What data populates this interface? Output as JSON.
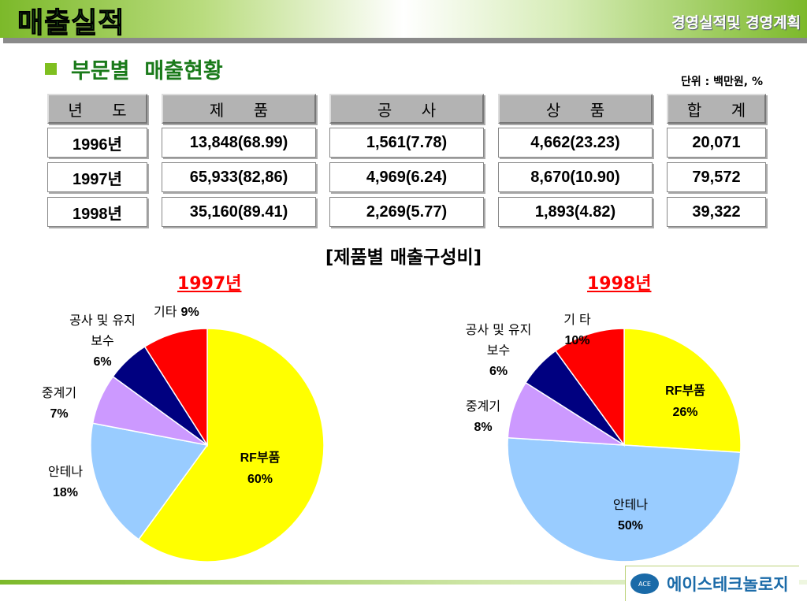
{
  "header": {
    "title": "매출실적",
    "subtitle": "경영실적및 경영계획"
  },
  "section": {
    "title": "부문별  매출현황",
    "unit": "단위 : 백만원, %"
  },
  "table": {
    "headers": [
      "년 도",
      "제 품",
      "공 사",
      "상 품",
      "합 계"
    ],
    "rows": [
      [
        "1996년",
        "13,848(68.99)",
        "1,561(7.78)",
        "4,662(23.23)",
        "20,071"
      ],
      [
        "1997년",
        "65,933(82,86)",
        "4,969(6.24)",
        "8,670(10.90)",
        "79,572"
      ],
      [
        "1998년",
        "35,160(89.41)",
        "2,269(5.77)",
        "1,893(4.82)",
        "39,322"
      ]
    ]
  },
  "charts_title": "[제품별 매출구성비]",
  "chart_data": [
    {
      "type": "pie",
      "title": "1997년",
      "slices": [
        {
          "label": "RF부품",
          "value": 60,
          "color": "#ffff00",
          "text": "60%"
        },
        {
          "label": "안테나",
          "value": 18,
          "color": "#99ccff",
          "text": "18%"
        },
        {
          "label": "중계기",
          "value": 7,
          "color": "#cc99ff",
          "text": "7%"
        },
        {
          "label": "공사 및 유지보수",
          "value": 6,
          "color": "#000080",
          "text": "6%"
        },
        {
          "label": "기타",
          "value": 9,
          "color": "#ff0000",
          "text": "9%"
        }
      ]
    },
    {
      "type": "pie",
      "title": "1998년",
      "slices": [
        {
          "label": "RF부품",
          "value": 26,
          "color": "#ffff00",
          "text": "26%"
        },
        {
          "label": "안테나",
          "value": 50,
          "color": "#99ccff",
          "text": "50%"
        },
        {
          "label": "중계기",
          "value": 8,
          "color": "#cc99ff",
          "text": "8%"
        },
        {
          "label": "공사 및 유지보수",
          "value": 6,
          "color": "#000080",
          "text": "6%"
        },
        {
          "label": "기 타",
          "value": 10,
          "color": "#ff0000",
          "text": "10%"
        }
      ]
    }
  ],
  "footer": {
    "logo_text": "에이스테크놀로지",
    "logo_mark": "ACE"
  }
}
